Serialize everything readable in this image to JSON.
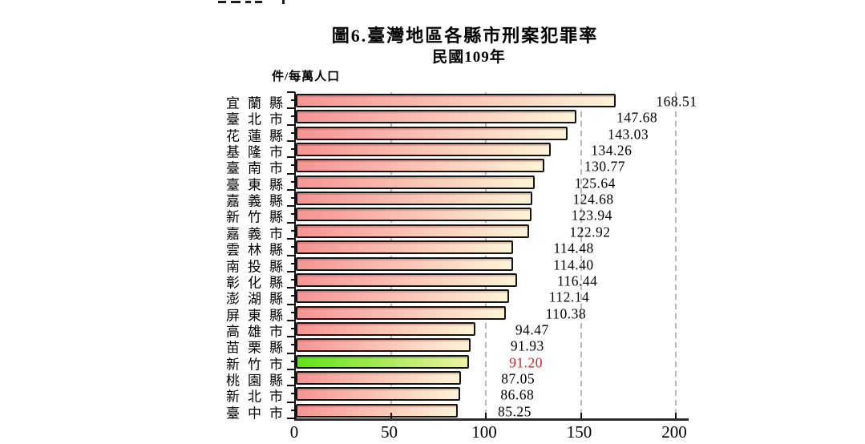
{
  "header": {
    "title": "圖6.臺灣地區各縣市刑案犯罪率",
    "subtitle": "民國109年",
    "unit_label": "件/每萬人口"
  },
  "chart_data": {
    "type": "bar",
    "orientation": "horizontal",
    "title": "圖6.臺灣地區各縣市刑案犯罪率",
    "subtitle": "民國109年",
    "value_axis_label": "件/每萬人口",
    "xlim": [
      0,
      207
    ],
    "x_ticks": [
      "0",
      "50",
      "100",
      "150",
      "200"
    ],
    "x_tick_values": [
      0,
      50,
      100,
      150,
      200
    ],
    "grid": "vertical dashed lines at 50/100/150/200",
    "legend": "none",
    "categories": [
      "宜蘭縣",
      "臺北市",
      "花蓮縣",
      "基隆市",
      "臺南市",
      "臺東縣",
      "嘉義縣",
      "新竹縣",
      "嘉義市",
      "雲林縣",
      "南投縣",
      "彰化縣",
      "澎湖縣",
      "屏東縣",
      "高雄市",
      "苗栗縣",
      "新竹市",
      "桃園縣",
      "新北市",
      "臺中市"
    ],
    "values": [
      168.51,
      147.68,
      143.03,
      134.26,
      130.77,
      125.64,
      124.68,
      123.94,
      122.92,
      114.48,
      114.4,
      116.44,
      112.14,
      110.38,
      94.47,
      91.93,
      91.2,
      87.05,
      86.68,
      85.25
    ],
    "value_labels": [
      "168.51",
      "147.68",
      "143.03",
      "134.26",
      "130.77",
      "125.64",
      "124.68",
      "123.94",
      "122.92",
      "114.48",
      "114.40",
      "116.44",
      "112.14",
      "110.38",
      "94.47",
      "91.93",
      "91.20",
      "87.05",
      "86.68",
      "85.25"
    ],
    "highlight_index": 16,
    "highlight_category": "新竹市",
    "colors": {
      "bar_gradient_start": "#f69494",
      "bar_gradient_end": "#fdf4d8",
      "highlight_gradient_start": "#5fe313",
      "highlight_gradient_end": "#eef2a0",
      "bar_border": "#141414",
      "gridline": "#b9b9b9",
      "highlight_value_text": "#dd2222",
      "text": "#000000"
    }
  }
}
